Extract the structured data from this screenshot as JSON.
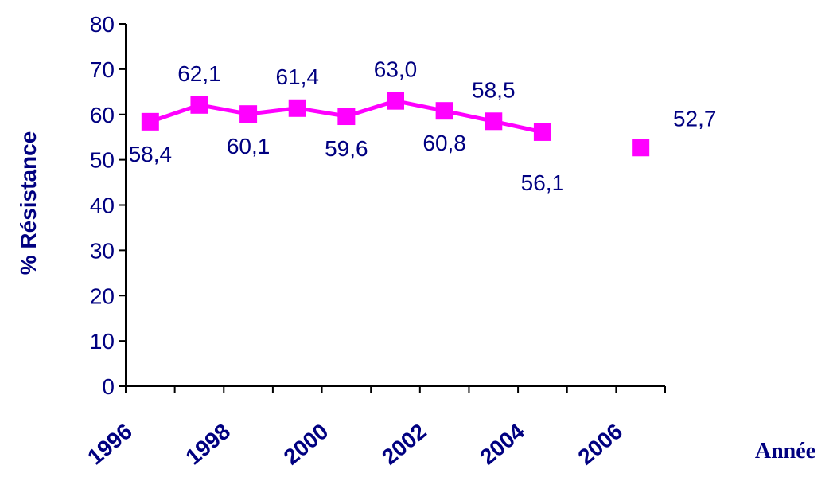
{
  "chart_data": {
    "type": "line",
    "ylabel": "% Résistance",
    "xlabel": "Année",
    "ylim": [
      0,
      80
    ],
    "yticks": [
      0,
      10,
      20,
      30,
      40,
      50,
      60,
      70,
      80
    ],
    "xlim": [
      1996,
      2007
    ],
    "xticks": [
      1996,
      1997,
      1998,
      1999,
      2000,
      2001,
      2002,
      2003,
      2004,
      2005,
      2006,
      2007
    ],
    "xtick_labels": [
      "1996",
      "1998",
      "2000",
      "2002",
      "2004",
      "2006"
    ],
    "grid": false,
    "series": [
      {
        "color": "#ff00ff",
        "marker": "square",
        "points": [
          {
            "x": 1996.5,
            "y": 58.4,
            "label": "58,4",
            "connected": true
          },
          {
            "x": 1997.5,
            "y": 62.1,
            "label": "62,1",
            "connected": true
          },
          {
            "x": 1998.5,
            "y": 60.1,
            "label": "60,1",
            "connected": true
          },
          {
            "x": 1999.5,
            "y": 61.4,
            "label": "61,4",
            "connected": true
          },
          {
            "x": 2000.5,
            "y": 59.6,
            "label": "59,6",
            "connected": true
          },
          {
            "x": 2001.5,
            "y": 63.0,
            "label": "63,0",
            "connected": true
          },
          {
            "x": 2002.5,
            "y": 60.8,
            "label": "60,8",
            "connected": true
          },
          {
            "x": 2003.5,
            "y": 58.5,
            "label": "58,5",
            "connected": true
          },
          {
            "x": 2004.5,
            "y": 56.1,
            "label": "56,1",
            "connected": true
          },
          {
            "x": 2006.5,
            "y": 52.7,
            "label": "52,7",
            "connected": false
          }
        ]
      }
    ],
    "axis_color": "#000000",
    "text_color": "#000080"
  }
}
